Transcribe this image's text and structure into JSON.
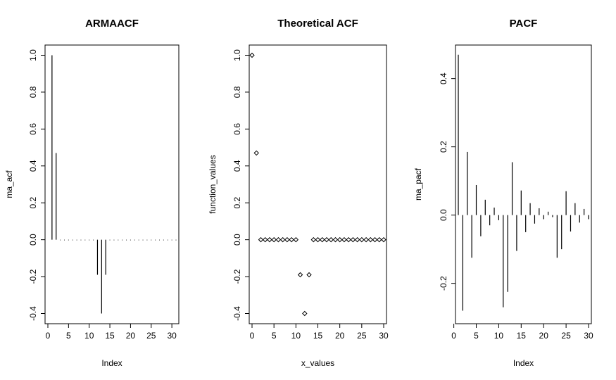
{
  "chart_data": [
    {
      "type": "bar",
      "style": "histogram-spikes",
      "title": "ARMAACF",
      "xlabel": "Index",
      "ylabel": "ma_acf",
      "xlim": [
        0,
        31
      ],
      "ylim": [
        -0.44,
        1.04
      ],
      "xticks": [
        0,
        5,
        10,
        15,
        20,
        25,
        30
      ],
      "yticks": [
        -0.4,
        -0.2,
        0.0,
        0.2,
        0.4,
        0.6,
        0.8,
        1.0
      ],
      "ytick_labels": [
        "-0.4",
        "-0.2",
        "0.0",
        "0.2",
        "0.4",
        "0.6",
        "0.8",
        "1.0"
      ],
      "x": [
        1,
        2,
        3,
        4,
        5,
        6,
        7,
        8,
        9,
        10,
        11,
        12,
        13,
        14,
        15,
        16,
        17,
        18,
        19,
        20,
        21,
        22,
        23,
        24,
        25,
        26,
        27,
        28,
        29,
        30,
        31
      ],
      "values": [
        1.0,
        0.47,
        0,
        0,
        0,
        0,
        0,
        0,
        0,
        0,
        0,
        -0.19,
        -0.4,
        -0.19,
        0,
        0,
        0,
        0,
        0,
        0,
        0,
        0,
        0,
        0,
        0,
        0,
        0,
        0,
        0,
        0,
        0
      ],
      "grid": false
    },
    {
      "type": "scatter",
      "marker": "open-diamond",
      "title": "Theoretical ACF",
      "xlabel": "x_values",
      "ylabel": "function_values",
      "xlim": [
        0,
        30
      ],
      "ylim": [
        -0.44,
        1.04
      ],
      "xticks": [
        0,
        5,
        10,
        15,
        20,
        25,
        30
      ],
      "yticks": [
        -0.4,
        -0.2,
        0.0,
        0.2,
        0.4,
        0.6,
        0.8,
        1.0
      ],
      "ytick_labels": [
        "-0.4",
        "-0.2",
        "0.0",
        "0.2",
        "0.4",
        "0.6",
        "0.8",
        "1.0"
      ],
      "x": [
        0,
        1,
        2,
        3,
        4,
        5,
        6,
        7,
        8,
        9,
        10,
        11,
        12,
        13,
        14,
        15,
        16,
        17,
        18,
        19,
        20,
        21,
        22,
        23,
        24,
        25,
        26,
        27,
        28,
        29,
        30
      ],
      "values": [
        1.0,
        0.47,
        0,
        0,
        0,
        0,
        0,
        0,
        0,
        0,
        0,
        -0.19,
        -0.4,
        -0.19,
        0,
        0,
        0,
        0,
        0,
        0,
        0,
        0,
        0,
        0,
        0,
        0,
        0,
        0,
        0,
        0,
        0
      ],
      "grid": false
    },
    {
      "type": "bar",
      "style": "histogram-spikes",
      "title": "PACF",
      "xlabel": "Index",
      "ylabel": "ma_pacf",
      "xlim": [
        1,
        30
      ],
      "ylim": [
        -0.31,
        0.49
      ],
      "xticks": [
        0,
        5,
        10,
        15,
        20,
        25,
        30
      ],
      "yticks": [
        -0.2,
        0.0,
        0.2,
        0.4
      ],
      "ytick_labels": [
        "-0.2",
        "0.0",
        "0.2",
        "0.4"
      ],
      "x": [
        1,
        2,
        3,
        4,
        5,
        6,
        7,
        8,
        9,
        10,
        11,
        12,
        13,
        14,
        15,
        16,
        17,
        18,
        19,
        20,
        21,
        22,
        23,
        24,
        25,
        26,
        27,
        28,
        29,
        30
      ],
      "values": [
        0.47,
        -0.28,
        0.185,
        -0.125,
        0.088,
        -0.062,
        0.045,
        -0.03,
        0.022,
        -0.015,
        -0.27,
        -0.225,
        0.155,
        -0.105,
        0.072,
        -0.05,
        0.035,
        -0.025,
        0.02,
        -0.012,
        0.01,
        -0.006,
        -0.125,
        -0.1,
        0.07,
        -0.048,
        0.035,
        -0.022,
        0.018,
        -0.012
      ],
      "grid": false
    }
  ]
}
